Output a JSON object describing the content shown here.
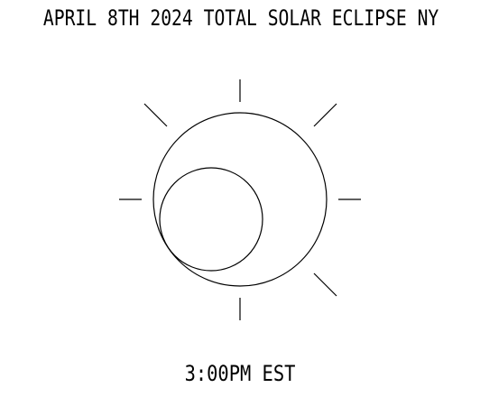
{
  "title": "APRIL 8TH 2024 TOTAL SOLAR ECLIPSE NY",
  "time_label": "3:00PM EST",
  "colors": {
    "stroke": "#000000",
    "background": "#ffffff"
  },
  "icons": [
    "sun-icon",
    "moon-icon",
    "sun-ray-icon"
  ]
}
